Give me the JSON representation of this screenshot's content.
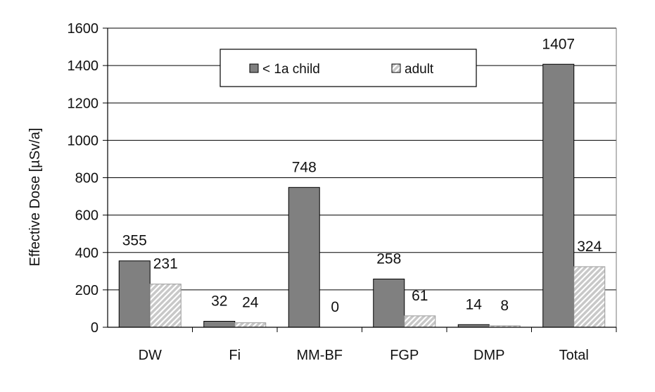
{
  "chart_data": {
    "type": "bar",
    "title": "",
    "xlabel": "",
    "ylabel": "Effective Dose [µSv/a]",
    "ylim": [
      0,
      1600
    ],
    "yticks": [
      0,
      200,
      400,
      600,
      800,
      1000,
      1200,
      1400,
      1600
    ],
    "grid": true,
    "legend_position": "top-center",
    "categories": [
      "DW",
      "Fi",
      "MM-BF",
      "FGP",
      "DMP",
      "Total"
    ],
    "series": [
      {
        "name": "< 1a child",
        "values": [
          355,
          32,
          748,
          258,
          14,
          1407
        ],
        "data_labels": [
          "355",
          "32",
          "748",
          "258",
          "14",
          "1407"
        ],
        "color": "#808080",
        "pattern": "solid"
      },
      {
        "name": "adult",
        "values": [
          231,
          24,
          0,
          61,
          8,
          324
        ],
        "data_labels": [
          "231",
          "24",
          "0",
          "61",
          "8",
          "324"
        ],
        "color": "#c0c0c0",
        "pattern": "diagonal-hatch"
      }
    ]
  }
}
